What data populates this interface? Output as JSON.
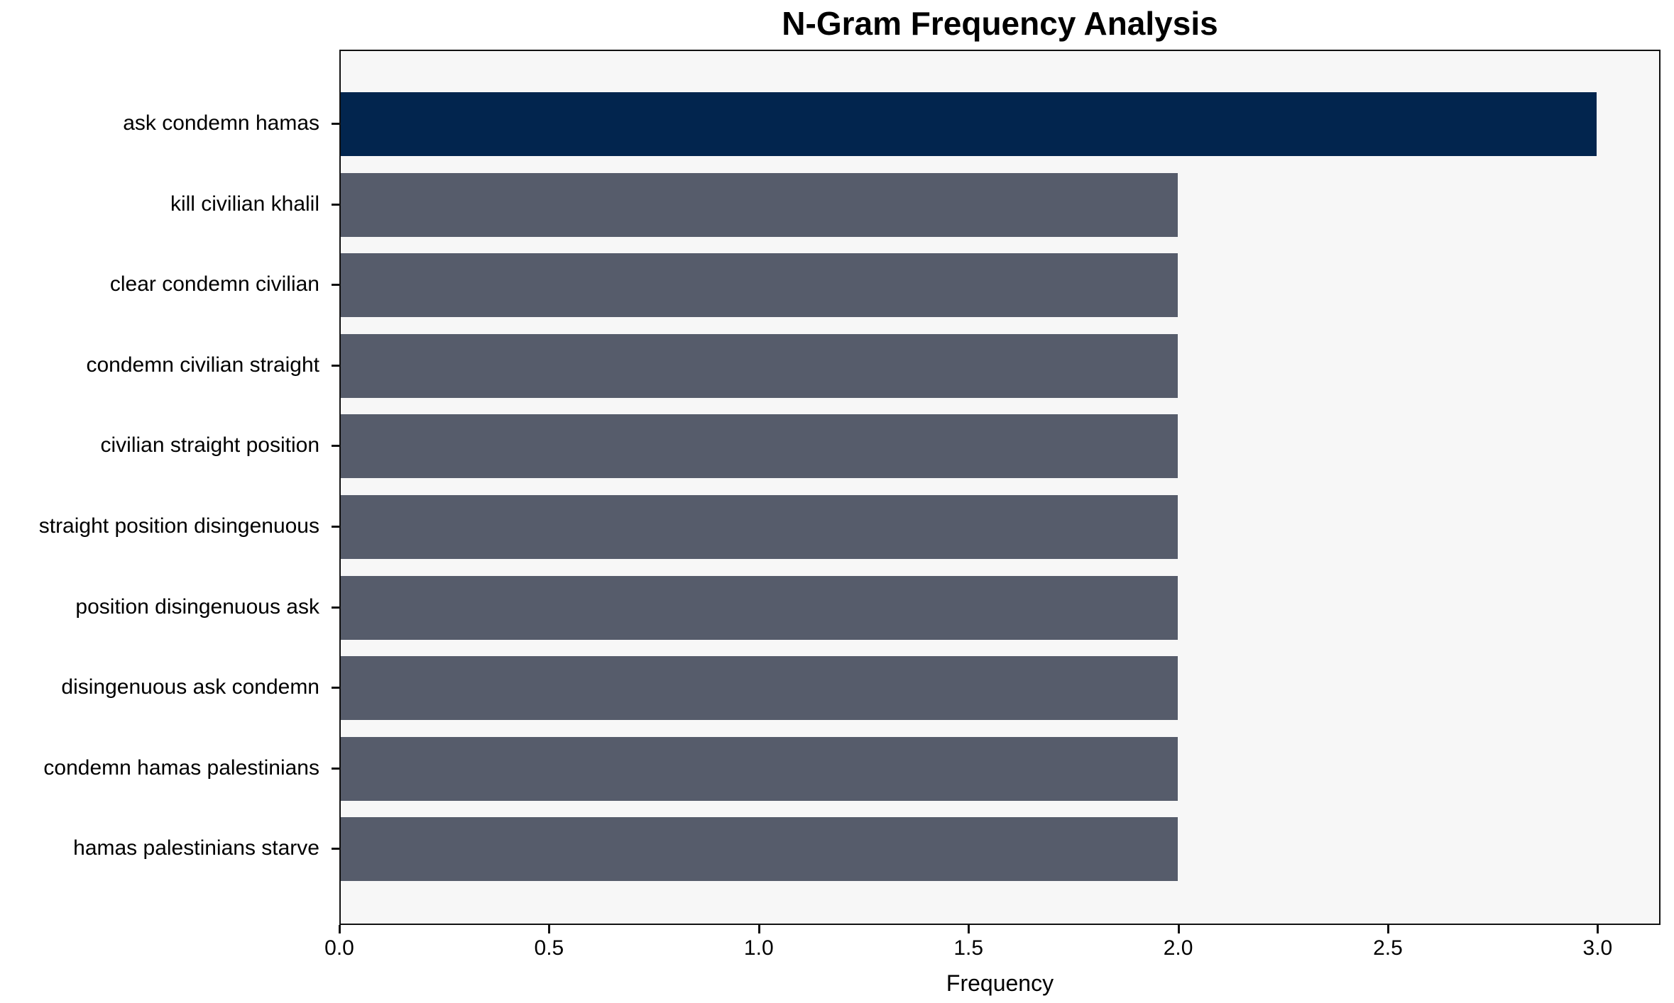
{
  "chart_data": {
    "type": "bar",
    "orientation": "horizontal",
    "title": "N-Gram Frequency Analysis",
    "xlabel": "Frequency",
    "ylabel": "",
    "categories": [
      "ask condemn hamas",
      "kill civilian khalil",
      "clear condemn civilian",
      "condemn civilian straight",
      "civilian straight position",
      "straight position disingenuous",
      "position disingenuous ask",
      "disingenuous ask condemn",
      "condemn hamas palestinians",
      "hamas palestinians starve"
    ],
    "values": [
      3,
      2,
      2,
      2,
      2,
      2,
      2,
      2,
      2,
      2
    ],
    "xlim": [
      0,
      3.15
    ],
    "xticks": [
      0.0,
      0.5,
      1.0,
      1.5,
      2.0,
      2.5,
      3.0
    ],
    "xtick_labels": [
      "0.0",
      "0.5",
      "1.0",
      "1.5",
      "2.0",
      "2.5",
      "3.0"
    ],
    "grid": "off",
    "legend": "none",
    "colors": {
      "bar_highlight": "#02254e",
      "bar_default": "#565c6b",
      "plot_background": "#f7f7f7",
      "figure_background": "#ffffff",
      "spine": "#111111",
      "text": "#000000"
    }
  }
}
